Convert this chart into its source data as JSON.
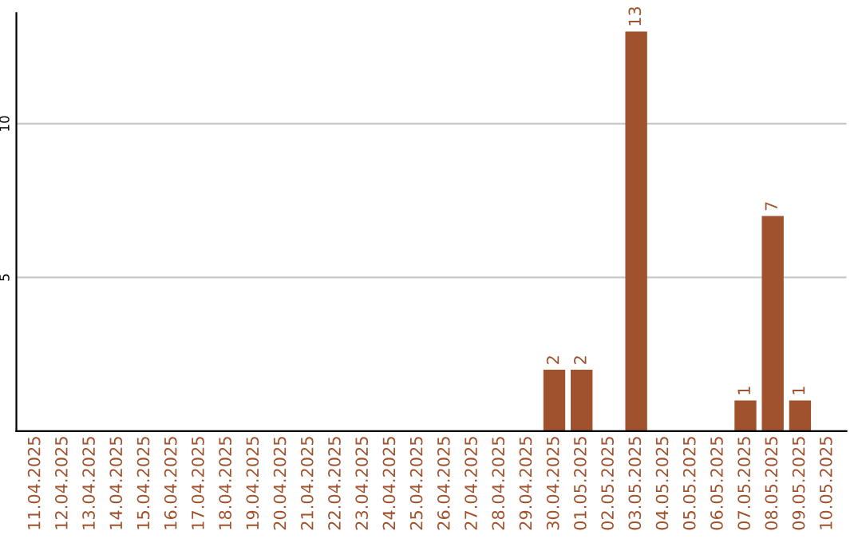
{
  "chart_data": {
    "type": "bar",
    "categories": [
      "11.04.2025",
      "12.04.2025",
      "13.04.2025",
      "14.04.2025",
      "15.04.2025",
      "16.04.2025",
      "17.04.2025",
      "18.04.2025",
      "19.04.2025",
      "20.04.2025",
      "21.04.2025",
      "22.04.2025",
      "23.04.2025",
      "24.04.2025",
      "25.04.2025",
      "26.04.2025",
      "27.04.2025",
      "28.04.2025",
      "29.04.2025",
      "30.04.2025",
      "01.05.2025",
      "02.05.2025",
      "03.05.2025",
      "04.05.2025",
      "05.05.2025",
      "06.05.2025",
      "07.05.2025",
      "08.05.2025",
      "09.05.2025",
      "10.05.2025"
    ],
    "values": [
      0,
      0,
      0,
      0,
      0,
      0,
      0,
      0,
      0,
      0,
      0,
      0,
      0,
      0,
      0,
      0,
      0,
      0,
      0,
      2,
      2,
      0,
      13,
      0,
      0,
      0,
      1,
      7,
      1,
      0
    ],
    "value_labels": [
      null,
      null,
      null,
      null,
      null,
      null,
      null,
      null,
      null,
      null,
      null,
      null,
      null,
      null,
      null,
      null,
      null,
      null,
      null,
      "2",
      "2",
      null,
      "13",
      null,
      null,
      null,
      "1",
      "7",
      "1",
      null
    ],
    "color": "#a0522d",
    "ylim": [
      0,
      13.6
    ],
    "yticks": [
      5,
      10
    ],
    "grid": "y"
  }
}
